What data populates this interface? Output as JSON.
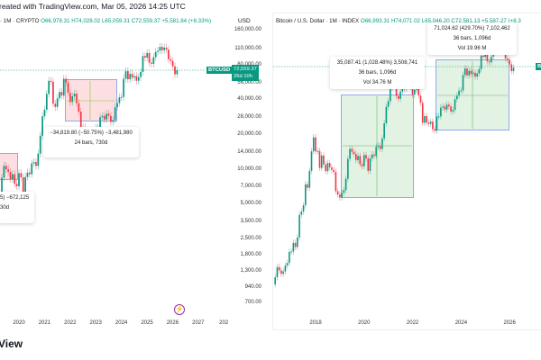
{
  "header": {
    "created_text": "reated with TradingView.com, Mar 05, 2026 14:25 UTC",
    "footer_brand": "View"
  },
  "left_chart": {
    "legend": {
      "symbol": "· 1M · CRYPTO",
      "o": "O66,978.31",
      "h": "H74,028.02",
      "l": "L65,059.31",
      "c": "C72,559.37",
      "chg": "+5,581.84 (+8.33%)"
    },
    "currency": "USD",
    "price_axis": [
      "160,000.00",
      "110,000.00",
      "80,000.00",
      "56,000.00",
      "40,000.00",
      "28,000.00",
      "20,000.00",
      "14,000.00",
      "10,000.00",
      "7,000.00",
      "5,000.00",
      "3,500.00",
      "2,500.00",
      "1,800.00",
      "1,300.00",
      "940.00",
      "700.00"
    ],
    "years": [
      "2020",
      "2021",
      "2022",
      "2023",
      "2024",
      "2025",
      "2026",
      "2027",
      "202"
    ],
    "symbol_tag": "BTCUSD",
    "price_tag": "72,559.37",
    "countdown": "26d 10h",
    "measure1": {
      "line1": "−34,819.80 (−50.75%) −3,481,980",
      "line2": "24 bars, 730d"
    },
    "measure2": {
      "line1": "5) −672,125",
      "line2": "30d"
    }
  },
  "right_chart": {
    "legend": {
      "symbol": "Bitcoin / U.S. Dollar · 1M · INDEX",
      "o": "O66,993.31",
      "h": "H74,071.02",
      "l": "L65,046.20",
      "c": "C72,581.13",
      "chg": "+5,587.27 (+8.3"
    },
    "years": [
      "2018",
      "2020",
      "2022",
      "2024",
      "2026"
    ],
    "measure1": {
      "line1": "35,087.41 (1,028.48%) 3,508,741",
      "line2": "36 bars, 1,096d",
      "line3": "Vol 34.76 M"
    },
    "measure2": {
      "line1": "71,024.62 (429.70%) 7,102,462",
      "line2": "36 bars, 1,096d",
      "line3": "Vol 19.96 M"
    },
    "symbol_tag": "B"
  },
  "colors": {
    "up": "#089981",
    "down": "#f23645",
    "accent": "#9c27b0"
  },
  "chart_data": {
    "type": "candlestick",
    "interval": "1M",
    "start": "2016-04",
    "closes": [
      448,
      531,
      673,
      624,
      575,
      609,
      700,
      742,
      963,
      970,
      1190,
      1080,
      1350,
      2300,
      2480,
      2875,
      4700,
      4340,
      6450,
      10200,
      14150,
      10200,
      10300,
      6900,
      9250,
      7500,
      6400,
      7750,
      7000,
      6600,
      6300,
      4000,
      3700,
      3450,
      3850,
      4100,
      5350,
      8550,
      10800,
      10100,
      9600,
      8300,
      9150,
      7550,
      7200,
      9350,
      8600,
      6450,
      8650,
      9450,
      9150,
      11350,
      11650,
      10800,
      13800,
      19700,
      29000,
      33100,
      45200,
      58800,
      57700,
      37300,
      35000,
      41500,
      47100,
      43800,
      61300,
      57000,
      46300,
      38500,
      43200,
      45500,
      37700,
      31800,
      19900,
      23300,
      20050,
      19400,
      20500,
      17150,
      16550,
      23100,
      23150,
      28500,
      29250,
      27200,
      30500,
      29250,
      25950,
      26950,
      34650,
      37700,
      42300,
      42600,
      61200,
      71300,
      60600,
      67500,
      62700,
      64600,
      58900,
      63300,
      70300,
      96400,
      93400,
      102400,
      84350,
      82550,
      94200,
      104600,
      107100,
      115700,
      108200,
      114000,
      109500,
      90400,
      87500,
      78600,
      66980,
      72580
    ],
    "scale": "log"
  }
}
